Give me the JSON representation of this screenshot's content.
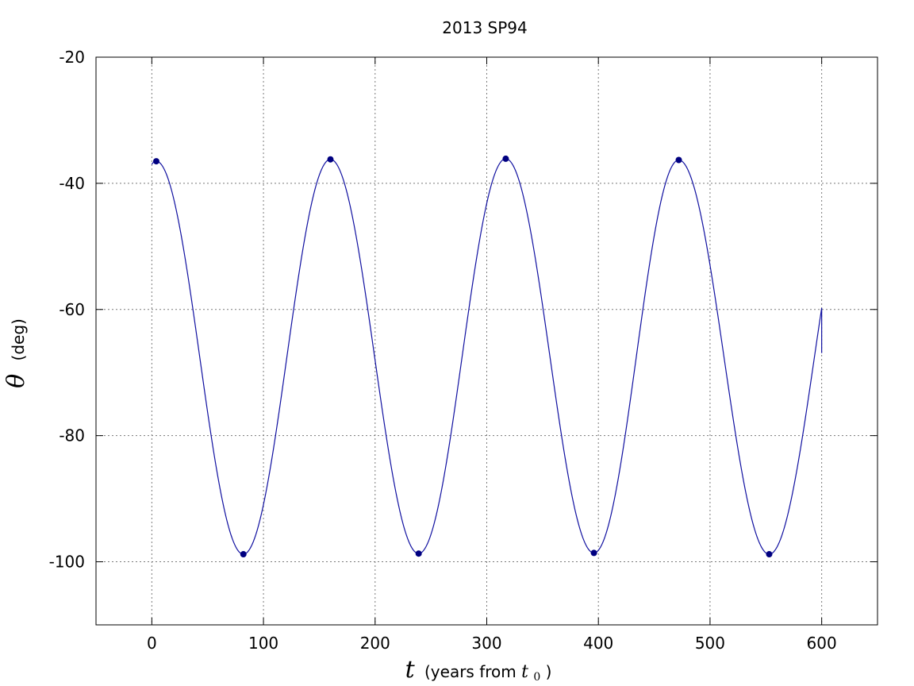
{
  "chart_data": {
    "type": "line",
    "title": "2013 SP94",
    "xlabel": {
      "var": "t",
      "text": "(years from ",
      "sub_var": "t",
      "sub_index": "0",
      "close": ")"
    },
    "ylabel": {
      "var": "θ",
      "text": "(deg)"
    },
    "xlim": [
      -50,
      650
    ],
    "ylim": [
      -110,
      -20
    ],
    "x_ticks": [
      0,
      100,
      200,
      300,
      400,
      500,
      600
    ],
    "y_ticks": [
      -20,
      -40,
      -60,
      -80,
      -100
    ],
    "x_tick_labels": [
      "0",
      "100",
      "200",
      "300",
      "400",
      "500",
      "600"
    ],
    "y_tick_labels": [
      "-20",
      "-40",
      "-60",
      "-80",
      "-100"
    ],
    "grid": true,
    "series": [
      {
        "color": "#1010a0",
        "curve": {
          "x_start": 0,
          "x_end": 600,
          "x_step": 2,
          "extrema": [
            [
              4,
              -36.5
            ],
            [
              82,
              -98.8
            ],
            [
              160,
              -36.2
            ],
            [
              239,
              -98.7
            ],
            [
              317,
              -36.1
            ],
            [
              396,
              -98.6
            ],
            [
              472,
              -36.3
            ],
            [
              553,
              -98.8
            ]
          ],
          "y_at_x_start": -37.0,
          "y_at_x_end": -66.9
        }
      }
    ],
    "markers": {
      "color": "#000080",
      "points": [
        [
          4,
          -36.5
        ],
        [
          82,
          -98.8
        ],
        [
          160,
          -36.2
        ],
        [
          239,
          -98.7
        ],
        [
          317,
          -36.1
        ],
        [
          396,
          -98.6
        ],
        [
          472,
          -36.3
        ],
        [
          553,
          -98.8
        ]
      ]
    }
  }
}
